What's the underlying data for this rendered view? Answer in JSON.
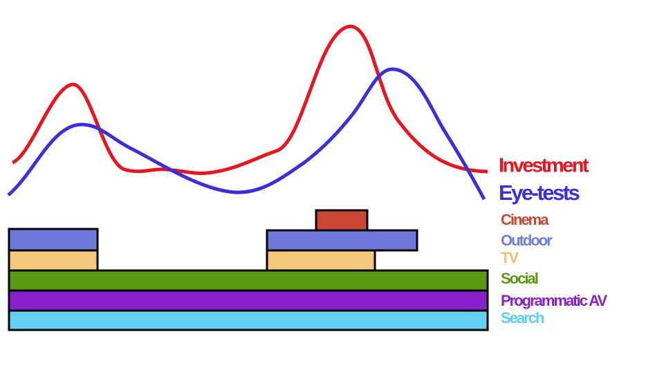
{
  "legend": {
    "lines": [
      {
        "label": "Investment"
      },
      {
        "label": "Eye-tests"
      }
    ],
    "channels": [
      {
        "label": "Cinema"
      },
      {
        "label": "Outdoor"
      },
      {
        "label": "TV"
      },
      {
        "label": "Social"
      },
      {
        "label": "Programmatic AV"
      },
      {
        "label": "Search"
      }
    ]
  }
}
